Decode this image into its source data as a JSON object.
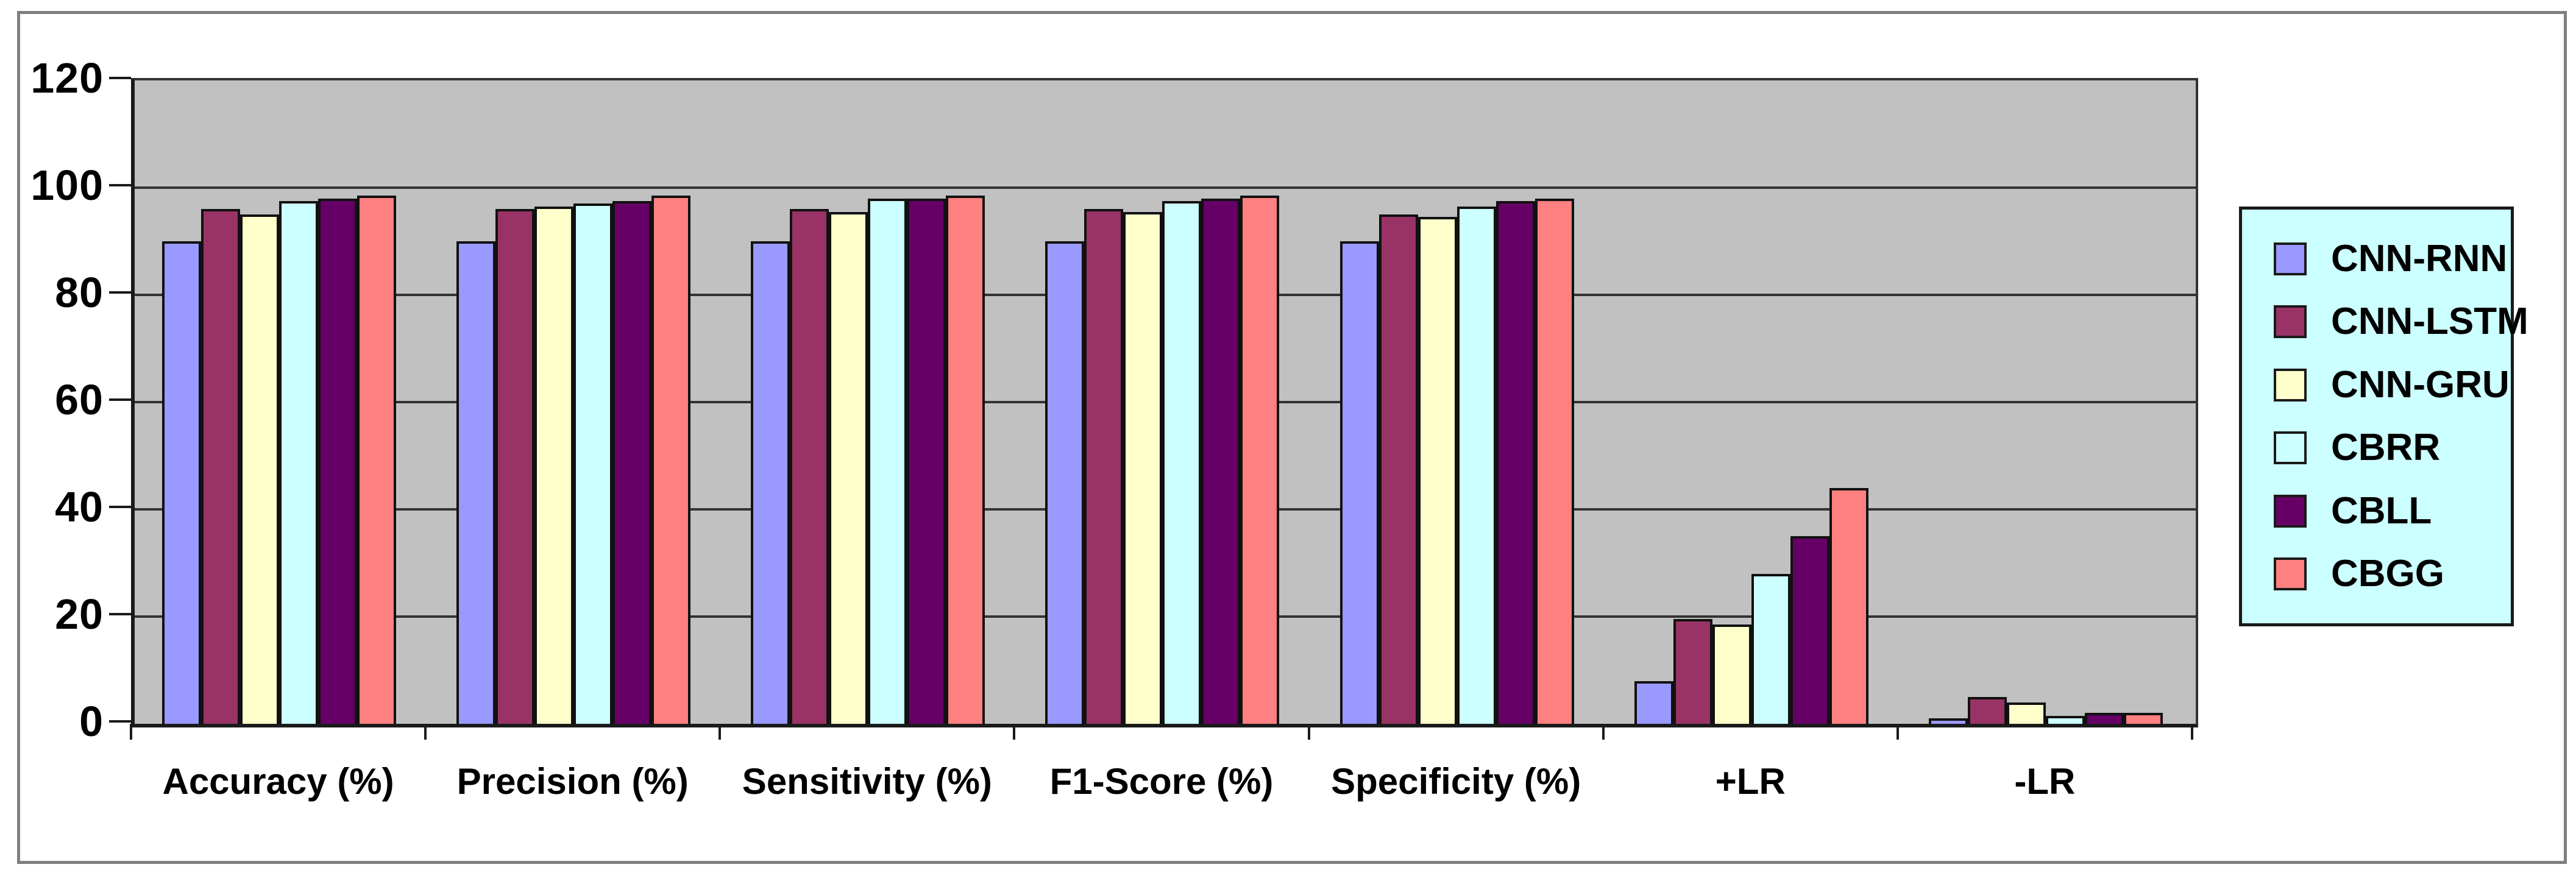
{
  "chart_data": {
    "type": "bar",
    "title": "",
    "categories": [
      "Accuracy (%)",
      "Precision  (%)",
      "Sensitivity  (%)",
      "F1-Score  (%)",
      "Specificity  (%)",
      "+LR",
      "-LR"
    ],
    "series": [
      {
        "name": "CNN-RNN",
        "color": "#9999FF",
        "values": [
          90,
          90,
          90,
          90,
          90,
          8,
          1
        ]
      },
      {
        "name": "CNN-LSTM",
        "color": "#993366",
        "values": [
          96,
          96,
          96,
          96,
          95,
          19.5,
          5
        ]
      },
      {
        "name": "CNN-GRU",
        "color": "#FFFFCC",
        "values": [
          95,
          96.5,
          95.5,
          95.5,
          94.5,
          18.5,
          4
        ]
      },
      {
        "name": "CBRR",
        "color": "#CCFFFF",
        "values": [
          97.5,
          97,
          98,
          97.5,
          96.5,
          28,
          1.5
        ]
      },
      {
        "name": "CBLL",
        "color": "#660066",
        "values": [
          98,
          97.5,
          98,
          98,
          97.5,
          35,
          2
        ]
      },
      {
        "name": "CBGG",
        "color": "#FF8080",
        "values": [
          98.5,
          98.5,
          98.5,
          98.5,
          98,
          44,
          2
        ]
      }
    ],
    "ylim": [
      0,
      120
    ],
    "yticks": [
      0,
      20,
      40,
      60,
      80,
      100,
      120
    ],
    "xlabel": "",
    "ylabel": "",
    "grid": "horizontal",
    "legend_position": "right",
    "legend_entries": [
      "CNN-RNN",
      "CNN-LSTM",
      "CNN-GRU",
      "CBRR",
      "CBLL",
      "CBGG"
    ],
    "plot_bg_color": "#C1C1C1",
    "legend_bg_color": "#CCFFFF",
    "frame_color": "#7F7F7F"
  }
}
